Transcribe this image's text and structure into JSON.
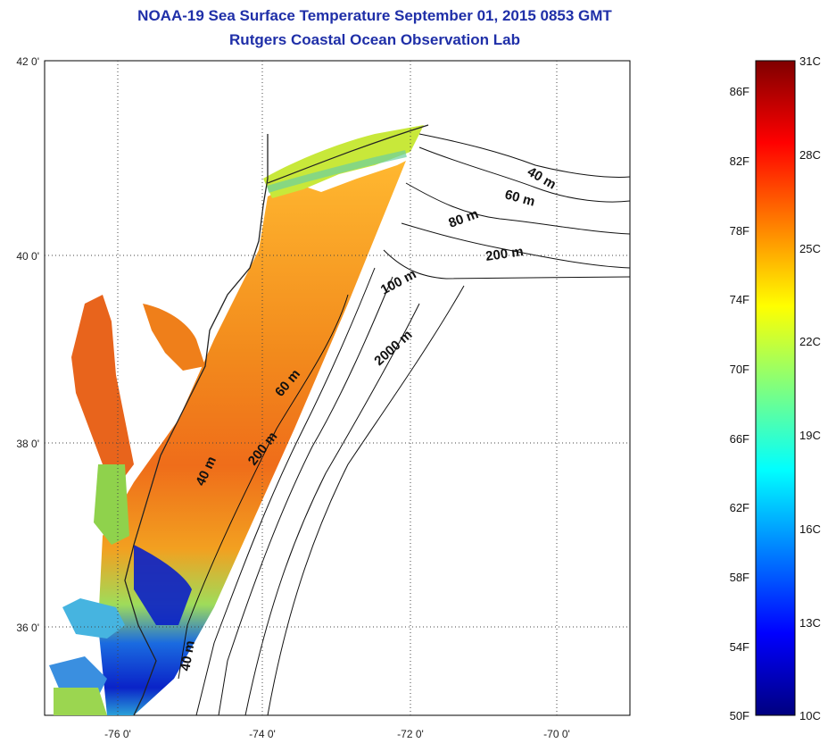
{
  "header": {
    "title": "NOAA-19 Sea Surface Temperature September 01, 2015 0853 GMT",
    "subtitle": "Rutgers Coastal Ocean Observation Lab"
  },
  "map": {
    "lat_ticks": [
      "42 0'",
      "40 0'",
      "38 0'",
      "36 0'"
    ],
    "lon_ticks": [
      "-76 0'",
      "-74 0'",
      "-72 0'",
      "-70 0'"
    ],
    "depth_labels": [
      "40 m",
      "60 m",
      "80 m",
      "200 m",
      "100 m",
      "2000 m",
      "60 m",
      "200 m",
      "40 m",
      "40 m"
    ]
  },
  "colorbar": {
    "min_c": 10,
    "max_c": 31,
    "colors": [
      "#00007f",
      "#0000ff",
      "#007fff",
      "#00ffff",
      "#7fff7f",
      "#ffff00",
      "#ff7f00",
      "#ff0000",
      "#7f0000"
    ],
    "f_labels": [
      "50F",
      "54F",
      "58F",
      "62F",
      "66F",
      "70F",
      "74F",
      "78F",
      "82F",
      "86F"
    ],
    "c_labels": [
      "10C",
      "13C",
      "16C",
      "19C",
      "22C",
      "25C",
      "28C",
      "31C"
    ]
  }
}
